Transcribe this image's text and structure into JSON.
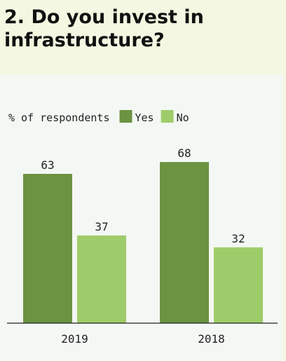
{
  "title": "2. Do you invest in infrastructure?",
  "chart_data": {
    "type": "bar",
    "ylabel": "% of respondents",
    "categories": [
      "2019",
      "2018"
    ],
    "series": [
      {
        "name": "Yes",
        "values": [
          63,
          68
        ],
        "color": "#6b9340"
      },
      {
        "name": "No",
        "values": [
          37,
          32
        ],
        "color": "#9fcc6a"
      }
    ],
    "ylim": [
      0,
      100
    ],
    "grid": false,
    "legend": "top-left"
  }
}
